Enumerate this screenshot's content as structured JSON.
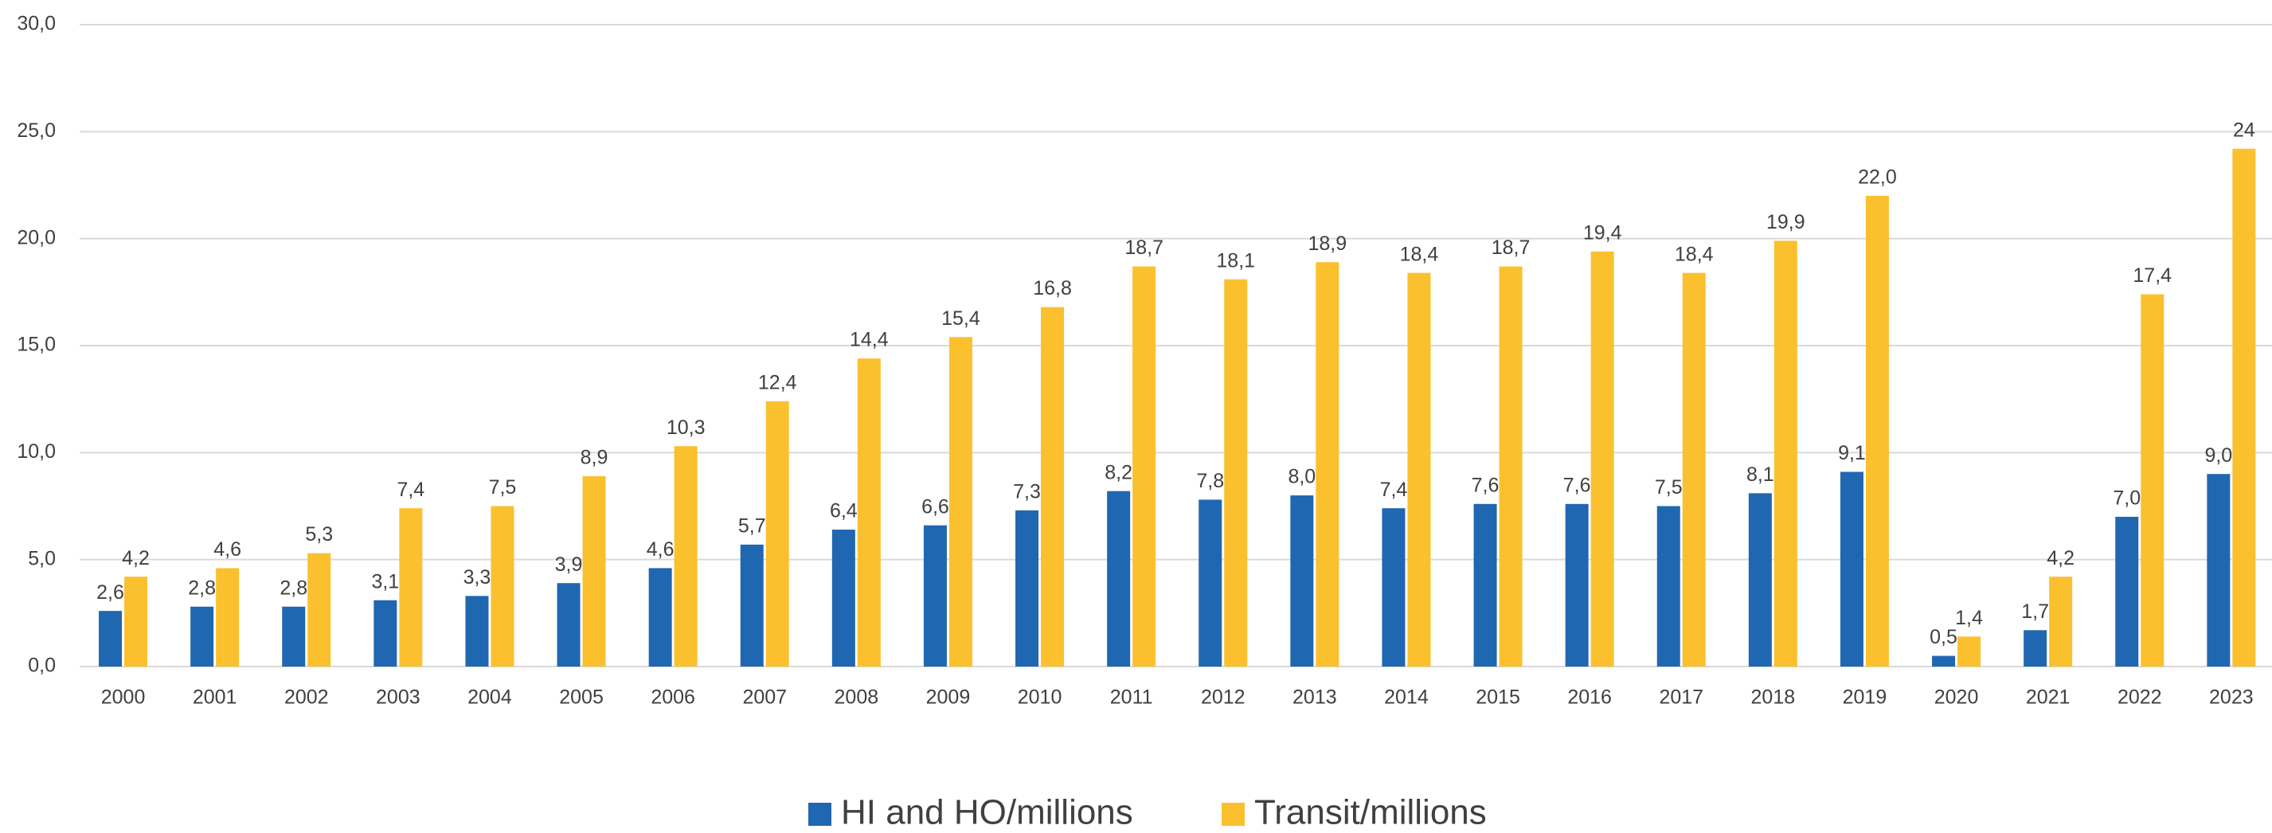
{
  "chart_data": {
    "type": "bar",
    "categories": [
      "2000",
      "2001",
      "2002",
      "2003",
      "2004",
      "2005",
      "2006",
      "2007",
      "2008",
      "2009",
      "2010",
      "2011",
      "2012",
      "2013",
      "2014",
      "2015",
      "2016",
      "2017",
      "2018",
      "2019",
      "2020",
      "2021",
      "2022",
      "2023"
    ],
    "series": [
      {
        "name": "HI and HO/millions",
        "color": "#1f67b1",
        "values": [
          2.6,
          2.8,
          2.8,
          3.1,
          3.3,
          3.9,
          4.6,
          5.7,
          6.4,
          6.6,
          7.3,
          8.2,
          7.8,
          8.0,
          7.4,
          7.6,
          7.6,
          7.5,
          8.1,
          9.1,
          0.5,
          1.7,
          7.0,
          9.0
        ],
        "value_labels": [
          "2,6",
          "2,8",
          "2,8",
          "3,1",
          "3,3",
          "3,9",
          "4,6",
          "5,7",
          "6,4",
          "6,6",
          "7,3",
          "8,2",
          "7,8",
          "8,0",
          "7,4",
          "7,6",
          "7,6",
          "7,5",
          "8,1",
          "9,1",
          "0,5",
          "1,7",
          "7,0",
          "9,0"
        ]
      },
      {
        "name": "Transit/millions",
        "color": "#fbc02d",
        "values": [
          4.2,
          4.6,
          5.3,
          7.4,
          7.5,
          8.9,
          10.3,
          12.4,
          14.4,
          15.4,
          16.8,
          18.7,
          18.1,
          18.9,
          18.4,
          18.7,
          19.4,
          18.4,
          19.9,
          22.0,
          1.4,
          4.2,
          17.4,
          24.2
        ],
        "value_labels": [
          "4,2",
          "4,6",
          "5,3",
          "7,4",
          "7,5",
          "8,9",
          "10,3",
          "12,4",
          "14,4",
          "15,4",
          "16,8",
          "18,7",
          "18,1",
          "18,9",
          "18,4",
          "18,7",
          "19,4",
          "18,4",
          "19,9",
          "22,0",
          "1,4",
          "4,2",
          "17,4",
          "24"
        ]
      }
    ],
    "ylim": [
      0,
      30
    ],
    "yticks": [
      {
        "value": 0,
        "label": "0,0"
      },
      {
        "value": 5,
        "label": "5,0"
      },
      {
        "value": 10,
        "label": "10,0"
      },
      {
        "value": 15,
        "label": "15,0"
      },
      {
        "value": 20,
        "label": "20,0"
      },
      {
        "value": 25,
        "label": "25,0"
      },
      {
        "value": 30,
        "label": "30,0"
      }
    ],
    "grid": true,
    "legend": "bottom"
  }
}
